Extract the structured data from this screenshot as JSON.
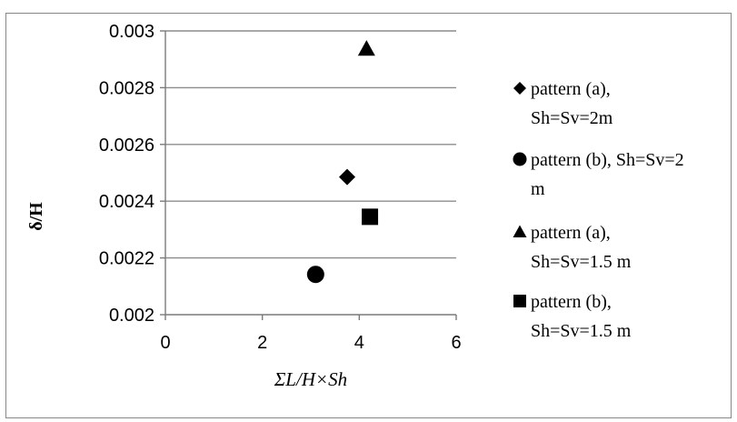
{
  "chart_data": {
    "type": "scatter",
    "title": "",
    "xlabel": "ΣL/H×Sh",
    "ylabel": "δ/H",
    "xlim": [
      0,
      6
    ],
    "ylim": [
      0.002,
      0.003
    ],
    "x_ticks": [
      "0",
      "2",
      "4",
      "6"
    ],
    "y_ticks": [
      "0.002",
      "0.0022",
      "0.0024",
      "0.0026",
      "0.0028",
      "0.003"
    ],
    "grid": "horizontal",
    "legend_position": "right",
    "series": [
      {
        "name": "pattern (a), Sh=Sv=2m",
        "legend_lines": [
          "pattern (a),",
          "Sh=Sv=2m"
        ],
        "marker": "diamond",
        "points": [
          {
            "x": 3.75,
            "y": 0.002485
          }
        ]
      },
      {
        "name": "pattern (b), Sh=Sv=2 m",
        "legend_lines": [
          "pattern (b), Sh=Sv=2",
          "m"
        ],
        "marker": "circle",
        "points": [
          {
            "x": 3.1,
            "y": 0.002142
          }
        ]
      },
      {
        "name": "pattern (a), Sh=Sv=1.5 m",
        "legend_lines": [
          "pattern (a),",
          "Sh=Sv=1.5 m"
        ],
        "marker": "triangle",
        "points": [
          {
            "x": 4.15,
            "y": 0.002937
          }
        ]
      },
      {
        "name": "pattern (b), Sh=Sv=1.5 m",
        "legend_lines": [
          "pattern (b),",
          "Sh=Sv=1.5 m"
        ],
        "marker": "square",
        "points": [
          {
            "x": 4.22,
            "y": 0.002345
          }
        ]
      }
    ]
  }
}
